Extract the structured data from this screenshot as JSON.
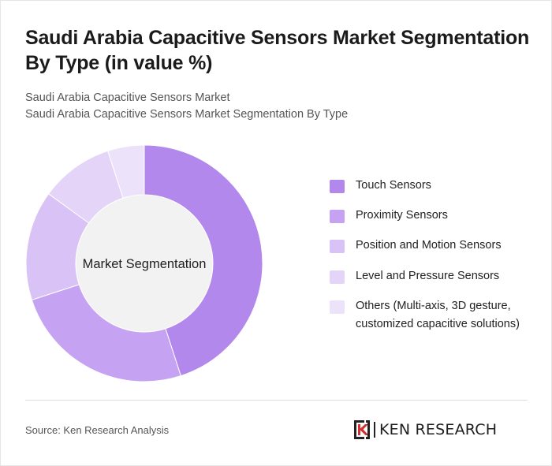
{
  "header": {
    "title": "Saudi Arabia Capacitive Sensors Market Segmentation By Type (in value %)",
    "subtitle_1": "Saudi Arabia Capacitive Sensors Market",
    "subtitle_2": "Saudi Arabia Capacitive Sensors Market Segmentation By Type"
  },
  "chart_data": {
    "type": "pie",
    "center_label": "Market Segmentation",
    "categories": [
      "Touch Sensors",
      "Proximity Sensors",
      "Position and Motion Sensors",
      "Level and Pressure Sensors",
      "Others (Multi-axis, 3D gesture, customized capacitive solutions)"
    ],
    "values": [
      45,
      25,
      15,
      10,
      5
    ],
    "colors": [
      "#b388ed",
      "#c5a3f2",
      "#d9c2f6",
      "#e3d4f8",
      "#ece3fa"
    ],
    "legend_position": "right"
  },
  "footer": {
    "source": "Source: Ken Research Analysis",
    "logo_text": "KEN RESEARCH"
  },
  "colors": {
    "hole": "#f2f2f2",
    "separator": "#ffffff"
  }
}
